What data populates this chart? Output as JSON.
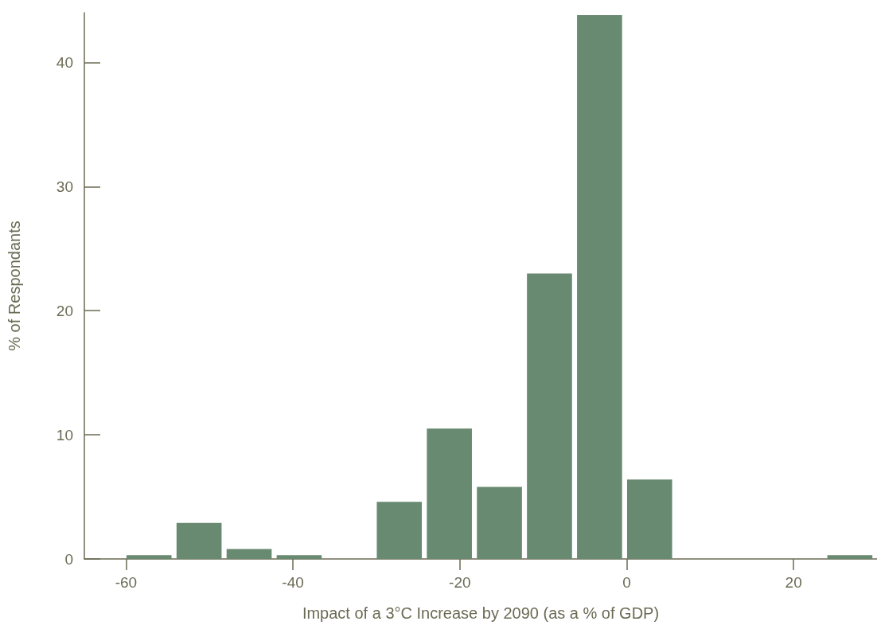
{
  "chart_data": {
    "type": "histogram",
    "xlabel": "Impact of a 3°C Increase by 2090 (as a % of GDP)",
    "ylabel": "% of Respondants",
    "bins": [
      -60,
      -54,
      -48,
      -42,
      -36,
      -30,
      -24,
      -18,
      -12,
      -6,
      0,
      6,
      12,
      18,
      24,
      30
    ],
    "values": [
      0.3,
      2.9,
      0.8,
      0.3,
      0,
      4.6,
      10.5,
      5.8,
      23,
      43.8,
      6.4,
      0,
      0,
      0,
      0.3
    ],
    "color": "#688a70",
    "xlim": [
      -65,
      30
    ],
    "xticks": [
      -60,
      -40,
      -20,
      0,
      20
    ],
    "ylim": [
      0,
      44
    ],
    "yticks": [
      0,
      10,
      20,
      30,
      40
    ],
    "grid": false
  }
}
